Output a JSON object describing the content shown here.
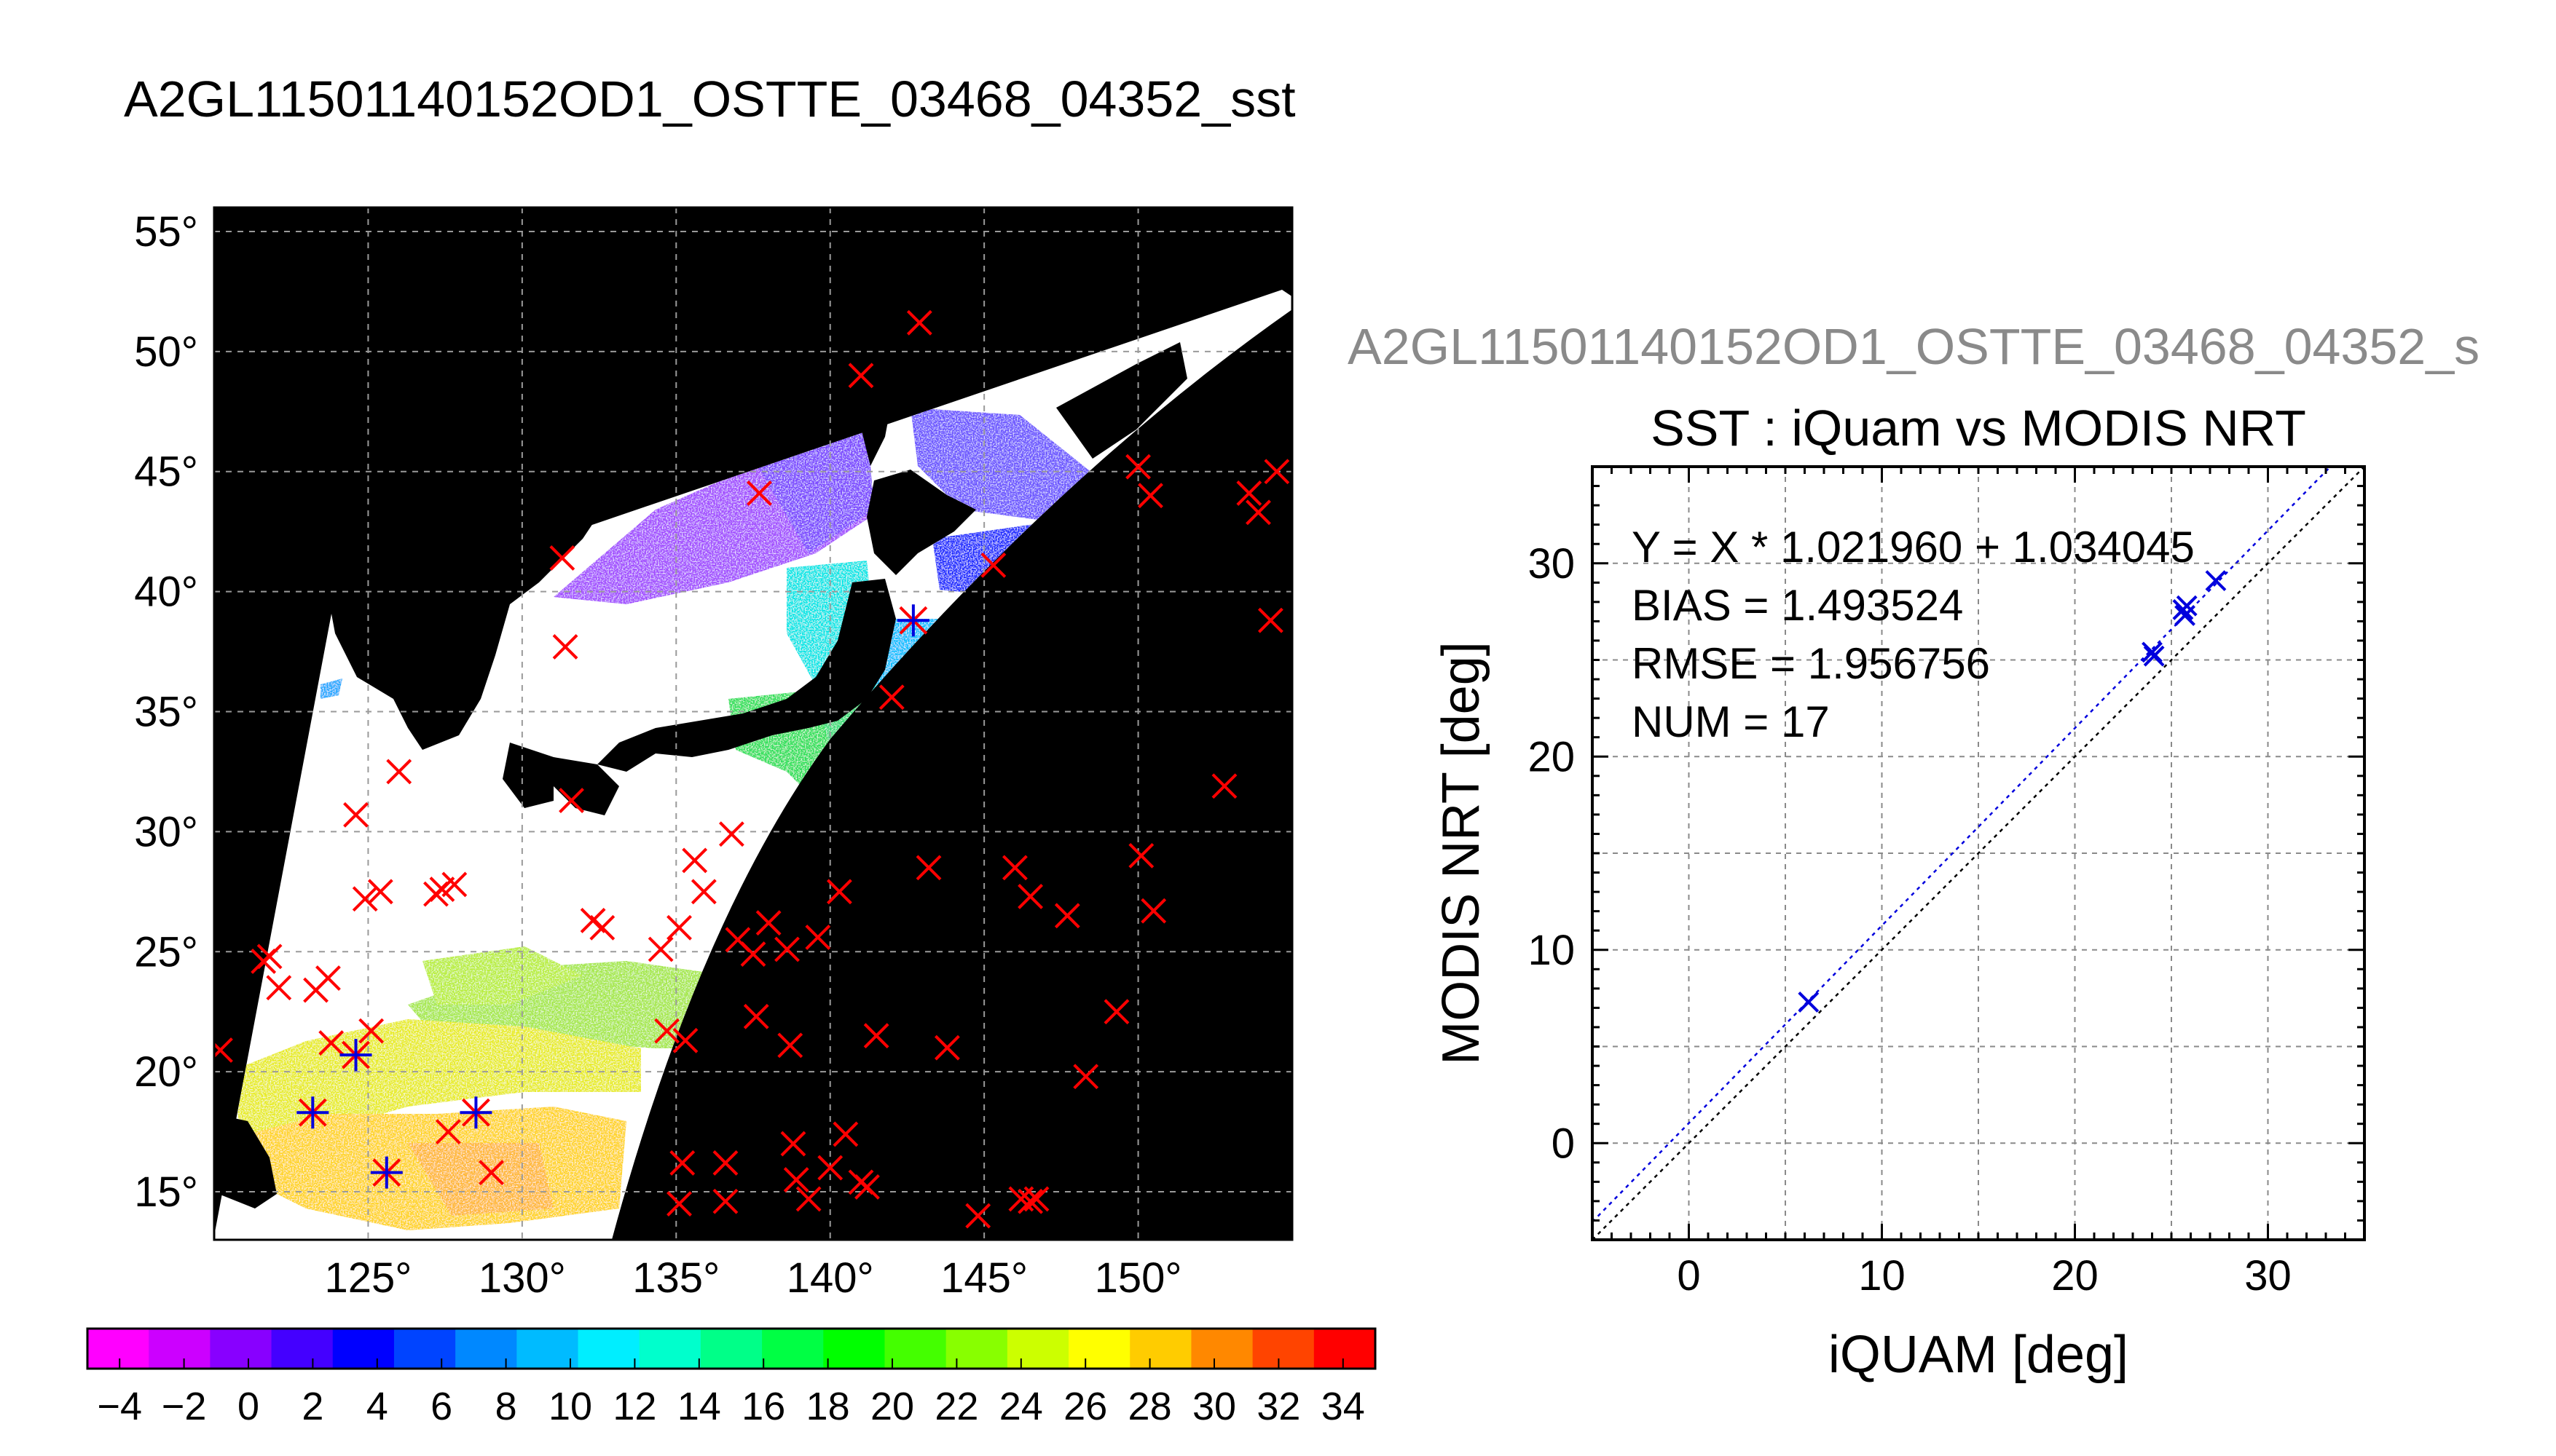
{
  "page_title": "A2GL11501140152OD1_OSTTE_03468_04352_sst",
  "chart_data": [
    {
      "type": "map",
      "title": "A2GL11501140152OD1_OSTTE_03468_04352_sst",
      "lon_range": [
        120,
        155
      ],
      "lat_range": [
        13,
        56
      ],
      "xticks": [
        "125°",
        "130°",
        "135°",
        "140°",
        "145°",
        "150°"
      ],
      "xtick_values": [
        125,
        130,
        135,
        140,
        145,
        150
      ],
      "yticks": [
        "55°",
        "50°",
        "45°",
        "40°",
        "35°",
        "30°",
        "25°",
        "20°",
        "15°"
      ],
      "ytick_values": [
        55,
        50,
        45,
        40,
        35,
        30,
        25,
        20,
        15
      ],
      "grid": true,
      "colorbar": {
        "labels": [
          "−4",
          "−2",
          "0",
          "2",
          "4",
          "6",
          "8",
          "10",
          "12",
          "14",
          "16",
          "18",
          "20",
          "22",
          "24",
          "26",
          "28",
          "30",
          "32",
          "34"
        ],
        "values": [
          -4,
          -2,
          0,
          2,
          4,
          6,
          8,
          10,
          12,
          14,
          16,
          18,
          20,
          22,
          24,
          26,
          28,
          30,
          32,
          34
        ],
        "range": [
          -5,
          35
        ],
        "colors": [
          "#ff00ff",
          "#cc00ff",
          "#8800ff",
          "#4400ff",
          "#0000ff",
          "#0044ff",
          "#0088ff",
          "#00bbff",
          "#00eeff",
          "#00ffcc",
          "#00ff88",
          "#00ff44",
          "#00ff00",
          "#44ff00",
          "#88ff00",
          "#ccff00",
          "#ffff00",
          "#ffcc00",
          "#ff8800",
          "#ff4400",
          "#ff0000"
        ]
      },
      "matchups_red_x": [
        [
          121.8,
          24.8
        ],
        [
          122.1,
          23.5
        ],
        [
          123.3,
          23.4
        ],
        [
          123.7,
          23.9
        ],
        [
          124.6,
          30.7
        ],
        [
          124.9,
          27.2
        ],
        [
          125.4,
          27.5
        ],
        [
          126.0,
          32.5
        ],
        [
          127.4,
          27.6
        ],
        [
          127.8,
          27.8
        ],
        [
          127.2,
          27.4
        ],
        [
          131.3,
          41.4
        ],
        [
          131.4,
          37.7
        ],
        [
          131.6,
          31.3
        ],
        [
          132.3,
          26.3
        ],
        [
          132.6,
          26.0
        ],
        [
          134.5,
          25.1
        ],
        [
          135.1,
          26.0
        ],
        [
          135.6,
          28.8
        ],
        [
          135.9,
          27.5
        ],
        [
          136.8,
          29.9
        ],
        [
          137.0,
          25.5
        ],
        [
          137.5,
          24.9
        ],
        [
          138.0,
          26.2
        ],
        [
          138.6,
          25.1
        ],
        [
          139.6,
          25.6
        ],
        [
          140.3,
          27.5
        ],
        [
          142.0,
          35.6
        ],
        [
          143.2,
          28.5
        ],
        [
          146.0,
          28.5
        ],
        [
          146.5,
          27.3
        ],
        [
          147.7,
          26.5
        ],
        [
          150.1,
          29.0
        ],
        [
          150.5,
          26.7
        ],
        [
          150.0,
          45.2
        ],
        [
          150.4,
          44.0
        ],
        [
          153.6,
          44.1
        ],
        [
          153.9,
          43.3
        ],
        [
          154.5,
          45.0
        ],
        [
          154.3,
          38.8
        ],
        [
          152.8,
          31.9
        ],
        [
          149.3,
          22.5
        ],
        [
          148.3,
          19.8
        ],
        [
          146.7,
          14.7
        ],
        [
          146.2,
          14.7
        ],
        [
          146.5,
          14.6
        ],
        [
          144.8,
          14.0
        ],
        [
          141.0,
          15.4
        ],
        [
          141.2,
          15.2
        ],
        [
          140.5,
          17.4
        ],
        [
          140.0,
          16.0
        ],
        [
          138.9,
          15.5
        ],
        [
          138.8,
          17.0
        ],
        [
          139.3,
          14.7
        ],
        [
          135.1,
          14.5
        ],
        [
          135.2,
          16.2
        ],
        [
          136.6,
          14.6
        ],
        [
          136.6,
          16.2
        ],
        [
          134.7,
          21.7
        ],
        [
          135.3,
          21.3
        ],
        [
          137.6,
          22.3
        ],
        [
          138.7,
          21.1
        ],
        [
          141.5,
          21.5
        ],
        [
          143.8,
          21.0
        ],
        [
          123.8,
          21.2
        ],
        [
          125.1,
          21.7
        ],
        [
          129.0,
          15.8
        ],
        [
          127.6,
          17.5
        ],
        [
          120.2,
          20.9
        ],
        [
          121.6,
          24.6
        ],
        [
          145.3,
          41.1
        ],
        [
          141.0,
          49.0
        ],
        [
          142.9,
          51.2
        ],
        [
          137.7,
          44.1
        ]
      ],
      "matchups_blue_star": [
        [
          123.2,
          18.3
        ],
        [
          124.6,
          20.7
        ],
        [
          125.6,
          15.8
        ],
        [
          128.5,
          18.3
        ],
        [
          142.7,
          38.8
        ]
      ]
    },
    {
      "type": "scatter",
      "header": "A2GL11501140152OD1_OSTTE_03468_04352_s",
      "title": "SST : iQuam vs MODIS NRT",
      "xlabel": "iQUAM [deg]",
      "ylabel": "MODIS NRT [deg]",
      "xlim": [
        -5,
        35
      ],
      "ylim": [
        -5,
        35
      ],
      "xticks": [
        0,
        10,
        20,
        30
      ],
      "yticks": [
        0,
        10,
        20,
        30
      ],
      "grid": true,
      "annotations": [
        "Y = X * 1.021960 + 1.034045",
        "BIAS = 1.493524",
        "RMSE = 1.956756",
        "NUM = 17"
      ],
      "fit": {
        "slope": 1.02196,
        "intercept": 1.034045
      },
      "identity_line": true,
      "points": [
        {
          "x": 6.2,
          "y": 7.3
        },
        {
          "x": 24.0,
          "y": 25.4
        },
        {
          "x": 24.1,
          "y": 25.2
        },
        {
          "x": 25.7,
          "y": 27.3
        },
        {
          "x": 25.8,
          "y": 27.8
        },
        {
          "x": 25.6,
          "y": 27.6
        },
        {
          "x": 27.3,
          "y": 29.1
        }
      ]
    }
  ],
  "colors": {
    "red_marker": "#ff0000",
    "blue_marker": "#0000dd",
    "land": "#000000",
    "cloud": "#ffffff",
    "header_gray": "#8a8a8a"
  }
}
